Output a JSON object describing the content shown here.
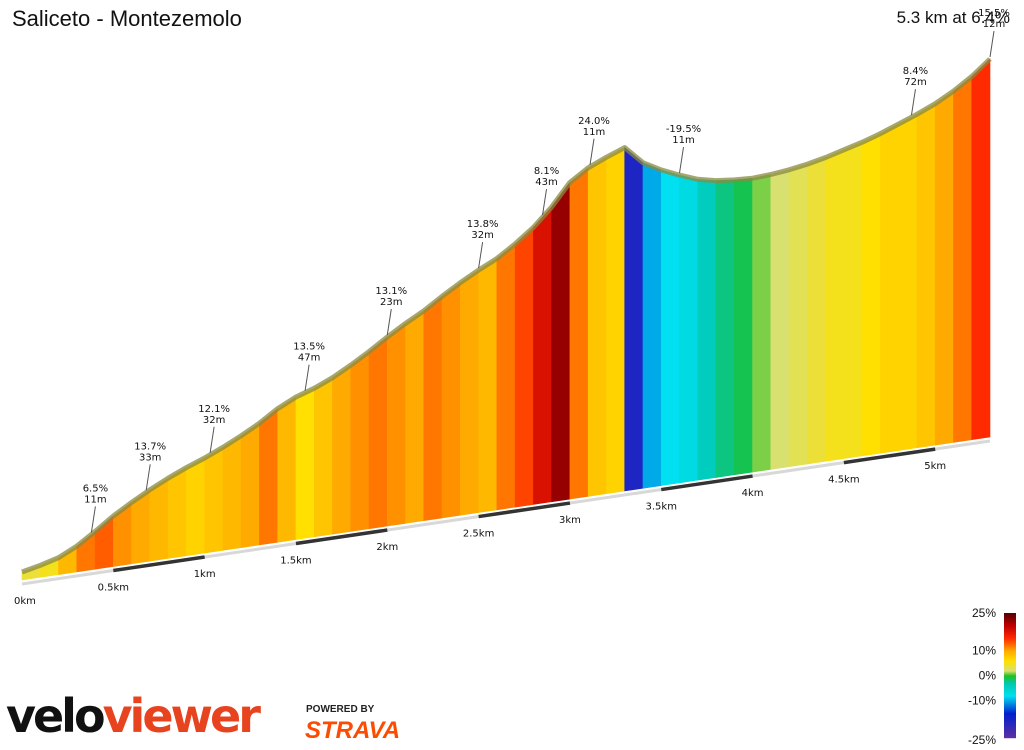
{
  "header": {
    "title": "Saliceto - Montezemolo",
    "summary": "5.3 km at 6.4%"
  },
  "chart_data": {
    "type": "area",
    "title": "Saliceto - Montezemolo",
    "subtitle": "5.3 km at 6.4%",
    "xlabel": "",
    "ylabel": "",
    "xlim": [
      0,
      5.3
    ],
    "x_unit": "km",
    "tick_labels": [
      "0km",
      "0.5km",
      "1km",
      "1.5km",
      "2km",
      "2.5km",
      "3km",
      "3.5km",
      "4km",
      "4.5km",
      "5km"
    ],
    "profile": {
      "x": [
        0,
        0.1,
        0.2,
        0.3,
        0.4,
        0.5,
        0.6,
        0.7,
        0.8,
        0.9,
        1.0,
        1.1,
        1.2,
        1.3,
        1.4,
        1.5,
        1.6,
        1.7,
        1.8,
        1.9,
        2.0,
        2.1,
        2.2,
        2.3,
        2.4,
        2.5,
        2.6,
        2.7,
        2.8,
        2.9,
        3.0,
        3.1,
        3.2,
        3.3,
        3.4,
        3.5,
        3.6,
        3.7,
        3.8,
        3.9,
        4.0,
        4.1,
        4.2,
        4.3,
        4.4,
        4.5,
        4.6,
        4.7,
        4.8,
        4.9,
        5.0,
        5.1,
        5.2,
        5.3
      ],
      "grade": [
        3,
        4,
        5,
        9,
        12,
        13,
        11,
        10,
        9,
        8,
        7,
        8,
        9,
        10,
        12,
        9,
        6,
        8,
        10,
        11,
        12,
        11,
        10,
        12,
        11,
        10,
        9,
        12,
        14,
        18,
        22,
        12,
        8,
        7,
        -18,
        -10,
        -8,
        -7,
        -4,
        -2,
        -1,
        1,
        2,
        3,
        4,
        5,
        5,
        6,
        7,
        7,
        8,
        10,
        12,
        15
      ]
    },
    "annotations": [
      {
        "x": 0.38,
        "grade": "6.5%",
        "length": "11m"
      },
      {
        "x": 0.68,
        "grade": "13.7%",
        "length": "33m"
      },
      {
        "x": 1.03,
        "grade": "12.1%",
        "length": "32m"
      },
      {
        "x": 1.55,
        "grade": "13.5%",
        "length": "47m"
      },
      {
        "x": 2.0,
        "grade": "13.1%",
        "length": "23m"
      },
      {
        "x": 2.5,
        "grade": "13.8%",
        "length": "32m"
      },
      {
        "x": 2.85,
        "grade": "8.1%",
        "length": "43m"
      },
      {
        "x": 3.11,
        "grade": "24.0%",
        "length": "11m"
      },
      {
        "x": 3.6,
        "grade": "-19.5%",
        "length": "11m"
      },
      {
        "x": 4.87,
        "grade": "8.4%",
        "length": "72m"
      },
      {
        "x": 5.3,
        "grade": "15.5%",
        "length": "12m"
      }
    ],
    "legend": {
      "position": "bottom-right",
      "labels": [
        "25%",
        "10%",
        "0%",
        "-10%",
        "-25%"
      ],
      "stops": [
        {
          "grade": 25,
          "color": "#5a0000"
        },
        {
          "grade": 20,
          "color": "#c00000"
        },
        {
          "grade": 15,
          "color": "#ff2a00"
        },
        {
          "grade": 10,
          "color": "#ffaa00"
        },
        {
          "grade": 6,
          "color": "#ffe000"
        },
        {
          "grade": 2,
          "color": "#d8e070"
        },
        {
          "grade": 0,
          "color": "#20c020"
        },
        {
          "grade": -3,
          "color": "#00c8b0"
        },
        {
          "grade": -8,
          "color": "#00e0f0"
        },
        {
          "grade": -15,
          "color": "#0020d0"
        },
        {
          "grade": -25,
          "color": "#6030a0"
        }
      ]
    }
  },
  "branding": {
    "logo_text": "veloviewer",
    "powered_by": "POWERED BY",
    "partner": "STRAVA",
    "logo_color": "#e8431f",
    "partner_color": "#fc4c02"
  }
}
